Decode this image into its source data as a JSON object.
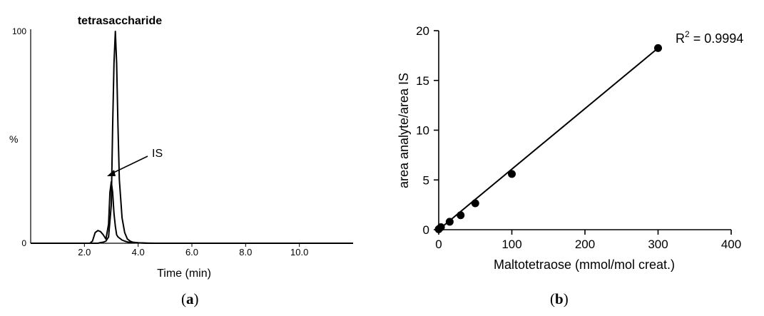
{
  "chart_data": [
    {
      "type": "line",
      "title": "tetrasaccharide",
      "xlabel": "Time (min)",
      "ylabel": "%",
      "xlim": [
        0,
        12
      ],
      "ylim": [
        0,
        100
      ],
      "x_ticks": [
        "2.0",
        "4.0",
        "6.0",
        "8.0",
        "10.0"
      ],
      "y_ticks": [
        "0",
        "100"
      ],
      "annotation": "IS",
      "grid": false,
      "series": [
        {
          "x": [
            0.0,
            2.2,
            2.3,
            2.4,
            2.5,
            2.6,
            2.7,
            2.8,
            2.9,
            2.95,
            3.0,
            3.05,
            3.1,
            3.15,
            3.2,
            3.25,
            3.3,
            3.4,
            3.5,
            3.6,
            3.8,
            4.0,
            4.3,
            4.6,
            12.0
          ],
          "y": [
            0,
            0,
            1,
            5,
            6,
            5.5,
            4,
            2,
            9,
            24,
            29,
            24,
            14,
            8,
            4,
            3,
            2.5,
            1.5,
            1,
            0.6,
            0.3,
            0.2,
            0.1,
            0,
            0
          ]
        },
        {
          "x": [
            0.0,
            2.5,
            2.6,
            2.7,
            2.8,
            2.9,
            3.0,
            3.05,
            3.1,
            3.15,
            3.2,
            3.25,
            3.3,
            3.4,
            3.5,
            3.6,
            3.7,
            3.8,
            4.0,
            4.3,
            12.0
          ],
          "y": [
            0,
            0,
            0.3,
            0.5,
            1,
            3,
            18,
            55,
            85,
            100,
            85,
            55,
            30,
            12,
            5,
            2,
            1,
            0.5,
            0.2,
            0,
            0
          ]
        }
      ]
    },
    {
      "type": "scatter",
      "xlabel": "Maltotetraose (mmol/mol creat.)",
      "ylabel": "area analyte/area IS",
      "xlim": [
        0,
        400
      ],
      "ylim": [
        0,
        20
      ],
      "x_ticks": [
        0,
        100,
        200,
        300,
        400
      ],
      "y_ticks": [
        0,
        5,
        10,
        15,
        20
      ],
      "annotation": "R² = 0.9994",
      "grid": false,
      "points": {
        "x": [
          0,
          3,
          15,
          30,
          50,
          100,
          300
        ],
        "y": [
          0.05,
          0.25,
          0.8,
          1.45,
          2.65,
          5.6,
          18.25
        ]
      },
      "fit_line": {
        "x": [
          0,
          300
        ],
        "y": [
          0.0,
          18.25
        ]
      }
    }
  ],
  "captions": {
    "a": "(a)",
    "b": "(b)"
  }
}
